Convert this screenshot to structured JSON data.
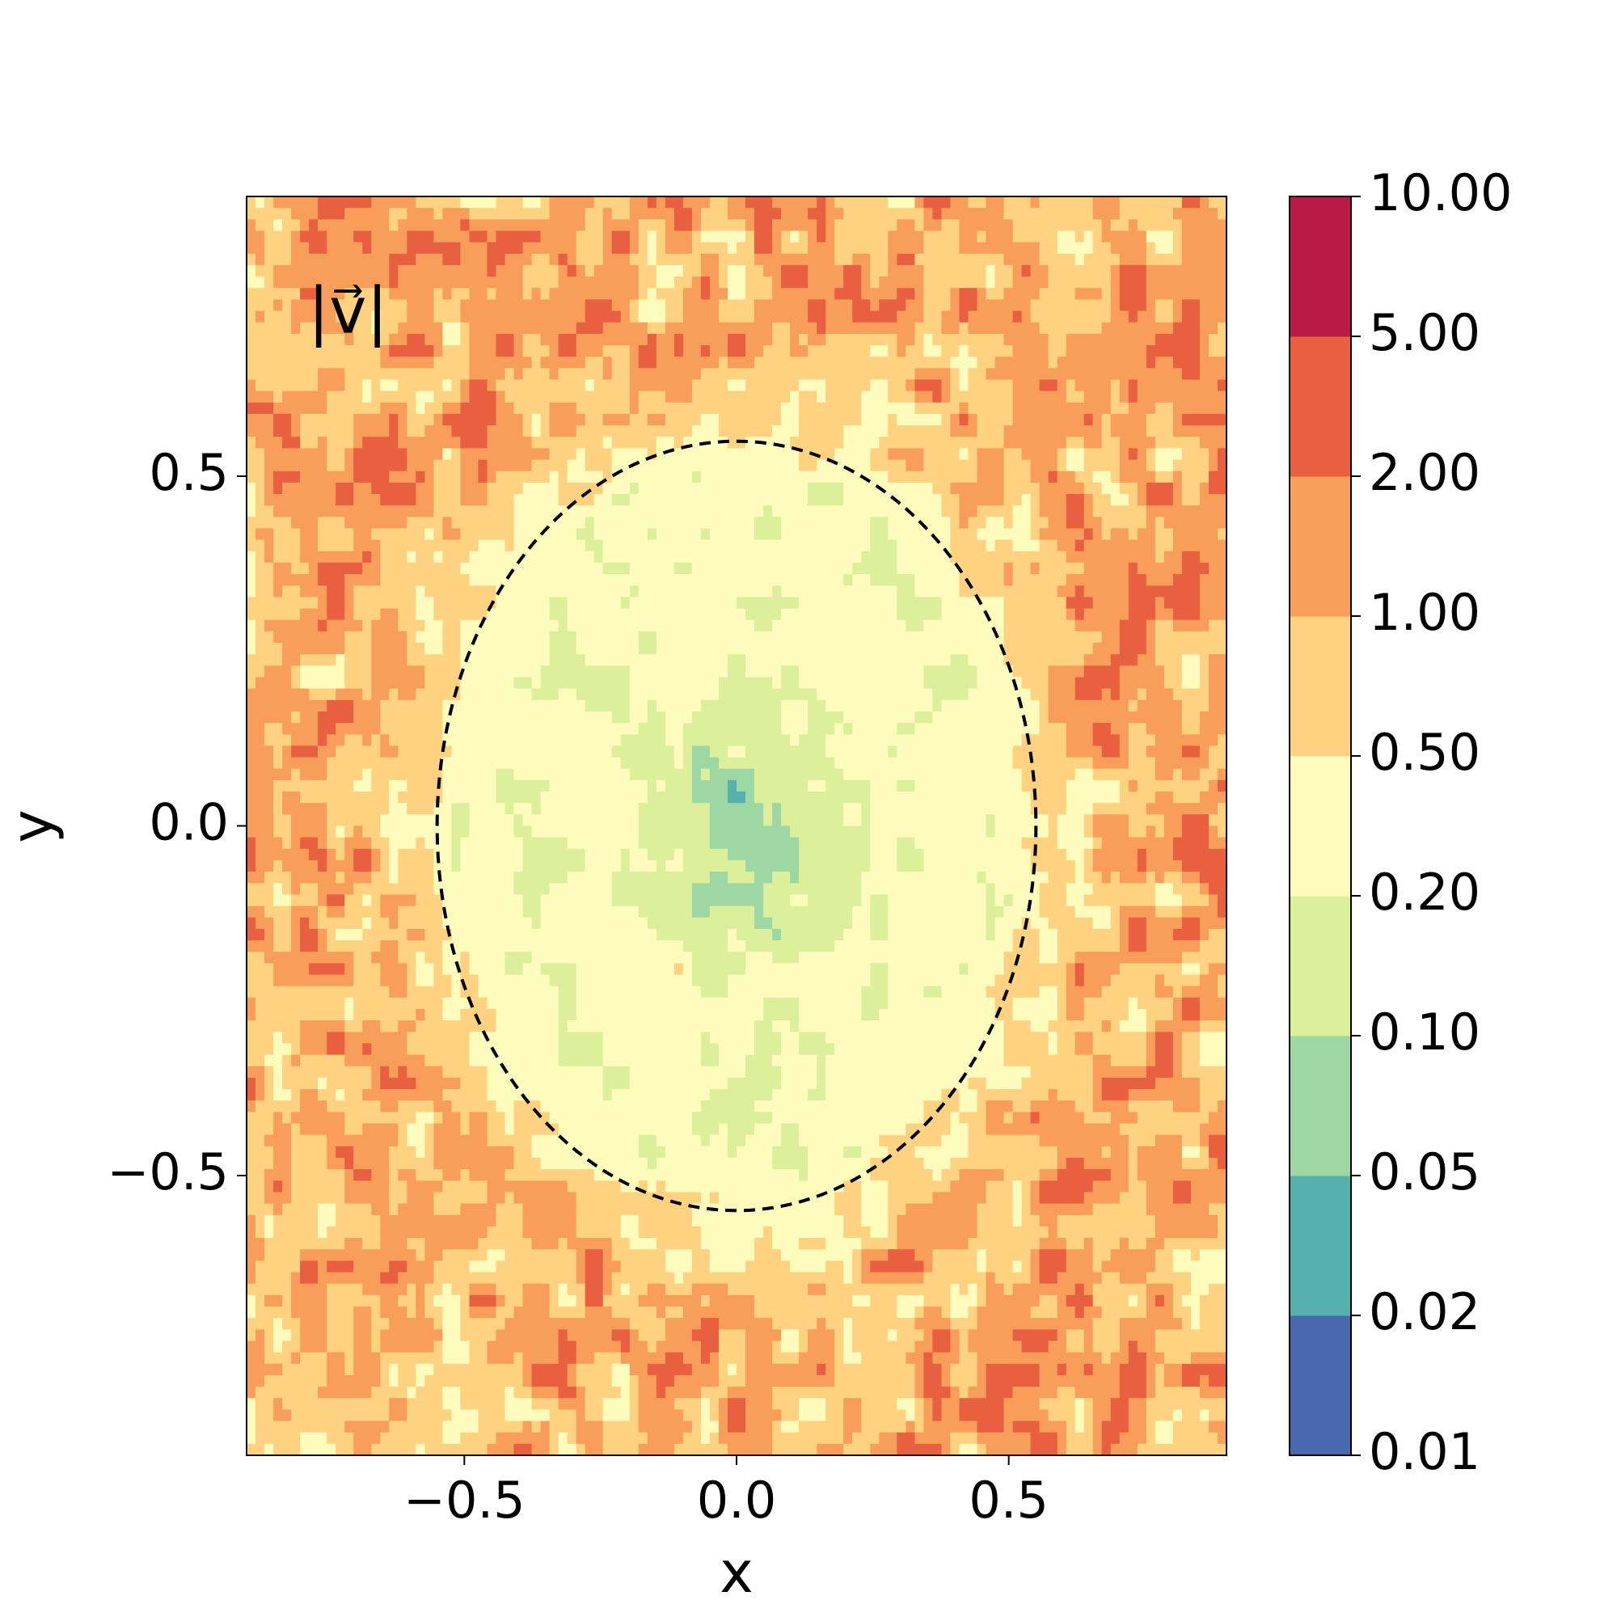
{
  "chart_data": {
    "type": "contour",
    "annotation": "|v⃗|",
    "x_label": "x",
    "y_label": "y",
    "xlim": [
      -0.9,
      0.9
    ],
    "ylim": [
      -0.9,
      0.9
    ],
    "xticks": [
      {
        "value": -0.5,
        "label": "−0.5"
      },
      {
        "value": 0,
        "label": "0.0"
      },
      0.5
    ],
    "yticks": [
      {
        "value": -0.5,
        "label": "−0.5"
      },
      {
        "value": 0,
        "label": "0.0"
      },
      0.5
    ],
    "circle": {
      "x": 0,
      "y": 0,
      "r": 0.55
    },
    "colorbar": {
      "ticks": [
        0.01,
        0.02,
        0.05,
        {
          "value": 0.1,
          "label": "0.10"
        },
        {
          "value": 0.2,
          "label": "0.20"
        },
        {
          "value": 0.5,
          "label": "0.50"
        },
        {
          "value": 1,
          "label": "1.00"
        },
        {
          "value": 2,
          "label": "2.00"
        },
        {
          "value": 5,
          "label": "5.00"
        },
        {
          "value": 10,
          "label": "10.00"
        }
      ],
      "colors": [
        "#4a68ad",
        "#56b0ad",
        "#9dd7a4",
        "#dcf09b",
        "#fefcbc",
        "#fed280",
        "#f99e5a",
        "#e8603f",
        "#bb1a47"
      ]
    }
  }
}
